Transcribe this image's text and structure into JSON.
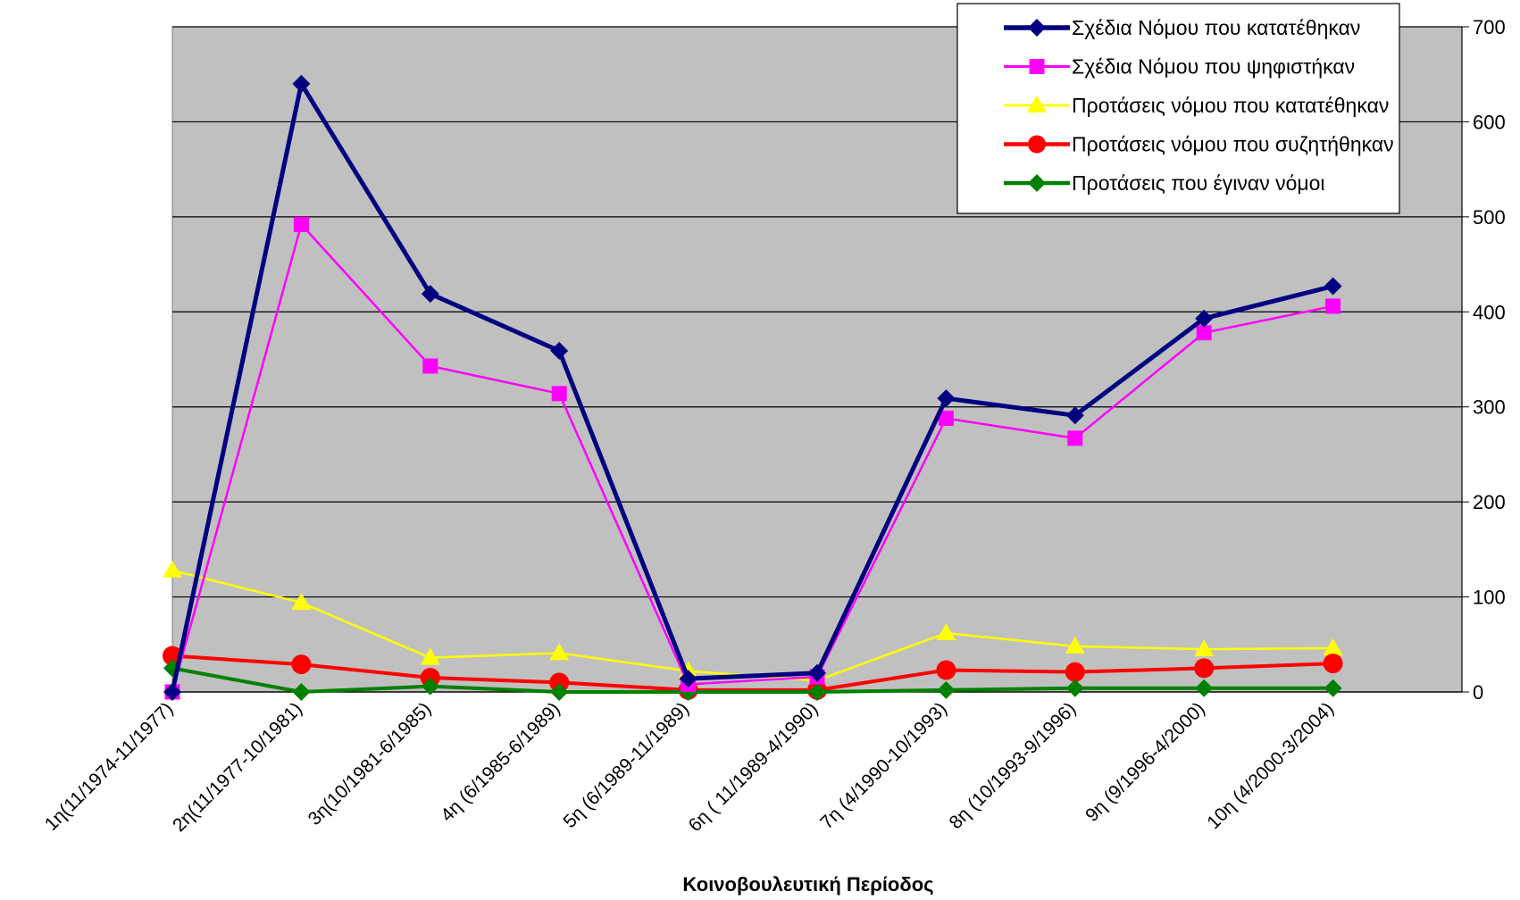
{
  "chart_data": {
    "type": "line",
    "xlabel": "Κοινοβουλευτική Περίοδος",
    "ylim": [
      0,
      700
    ],
    "yticks": [
      0,
      100,
      200,
      300,
      400,
      500,
      600,
      700
    ],
    "ytick_labels": [
      "0",
      "100",
      "200",
      "300",
      "400",
      "500",
      "600",
      "700"
    ],
    "y_axis_side": "right",
    "grid": true,
    "legend_placement": "top-right",
    "categories": [
      "1η(11/1974-11/1977)",
      "2η(11/1977-10/1981)",
      "3η(10/1981-6/1985)",
      "4η (6/1985-6/1989)",
      "5η (6/1989-11/1989)",
      "6η ( 11/1989-4/1990)",
      "7η (4/1990-10/1993)",
      "8η (10/1993-9/1996)",
      "9η (9/1996-4/2000)",
      "10η (4/2000-3/2004)"
    ],
    "series": [
      {
        "name": "Σχέδια Νόμου που κατατέθηκαν",
        "color": "#000080",
        "marker": "diamond",
        "values": [
          0,
          640,
          419,
          359,
          14,
          20,
          309,
          291,
          393,
          427
        ]
      },
      {
        "name": "Σχέδια Νόμου που ψηφιστήκαν",
        "color": "#FF00FF",
        "marker": "square",
        "values": [
          0,
          492,
          343,
          314,
          8,
          16,
          288,
          267,
          378,
          406
        ]
      },
      {
        "name": "Προτάσεις νόμου που κατατέθηκαν",
        "color": "#FFFF00",
        "marker": "triangle",
        "values": [
          128,
          94,
          36,
          41,
          22,
          12,
          62,
          48,
          45,
          46
        ]
      },
      {
        "name": "Προτάσεις νόμου που συζητήθηκαν",
        "color": "#FF0000",
        "marker": "circle",
        "values": [
          38,
          29,
          15,
          10,
          2,
          2,
          23,
          21,
          25,
          30
        ]
      },
      {
        "name": "Προτάσεις  που   έγιναν νόμοι",
        "color": "#008000",
        "marker": "diamond",
        "values": [
          25,
          0,
          6,
          0,
          0,
          0,
          2,
          4,
          4,
          4
        ]
      }
    ],
    "colors": {
      "plot_background": "#C0C0C0",
      "gridline": "#000000"
    }
  }
}
